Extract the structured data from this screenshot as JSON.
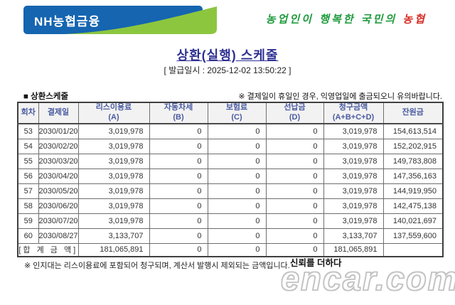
{
  "colors": {
    "brand_blue": "#1565b0",
    "swoosh_green": "#8cc63f",
    "slogan_green": "#1e9b3c",
    "slogan_red": "#d62f27",
    "title_navy": "#2f3193",
    "header_text_blue": "#4a5ba0"
  },
  "logo": {
    "text": "NH농협금융"
  },
  "slogan": {
    "green_part": "농업인이 행복한 국민의 ",
    "red_part": "농협"
  },
  "title": "상환(실행) 스케줄",
  "issue_line": "[ 발급일시 : 2025-12-02 13:50:22 ]",
  "section": {
    "label": "■ 상환스케줄",
    "notice": "※ 결제일이 휴일인 경우, 익영업일에 출금되오니 유의바랍니다."
  },
  "table": {
    "headers": [
      [
        "회차",
        ""
      ],
      [
        "결제일",
        ""
      ],
      [
        "리스이용료",
        "(A)"
      ],
      [
        "자동차세",
        "(B)"
      ],
      [
        "보험료",
        "(C)"
      ],
      [
        "선납금",
        "(D)"
      ],
      [
        "청구금액",
        "(A+B+C+D)"
      ],
      [
        "잔원금",
        ""
      ]
    ],
    "rows": [
      [
        "53",
        "2030/01/20",
        "3,019,978",
        "0",
        "0",
        "0",
        "3,019,978",
        "154,613,514"
      ],
      [
        "54",
        "2030/02/20",
        "3,019,978",
        "0",
        "0",
        "0",
        "3,019,978",
        "152,202,915"
      ],
      [
        "55",
        "2030/03/20",
        "3,019,978",
        "0",
        "0",
        "0",
        "3,019,978",
        "149,783,808"
      ],
      [
        "56",
        "2030/04/20",
        "3,019,978",
        "0",
        "0",
        "0",
        "3,019,978",
        "147,356,163"
      ],
      [
        "57",
        "2030/05/20",
        "3,019,978",
        "0",
        "0",
        "0",
        "3,019,978",
        "144,919,950"
      ],
      [
        "58",
        "2030/06/20",
        "3,019,978",
        "0",
        "0",
        "0",
        "3,019,978",
        "142,475,138"
      ],
      [
        "59",
        "2030/07/20",
        "3,019,978",
        "0",
        "0",
        "0",
        "3,019,978",
        "140,021,697"
      ],
      [
        "60",
        "2030/08/27",
        "3,133,707",
        "0",
        "0",
        "0",
        "3,133,707",
        "137,559,600"
      ]
    ],
    "total_row": {
      "label": "[합 계 금 액]",
      "values": [
        "181,065,891",
        "0",
        "0",
        "0",
        "181,065,891",
        ""
      ]
    }
  },
  "footnote": "※ 인지대는 리스이용료에 포함되어 청구되며, 계산서 발행시 제외되는 금액입니다.",
  "watermark": {
    "tagline": "신뢰를 더하다",
    "brand": "encar.com"
  }
}
